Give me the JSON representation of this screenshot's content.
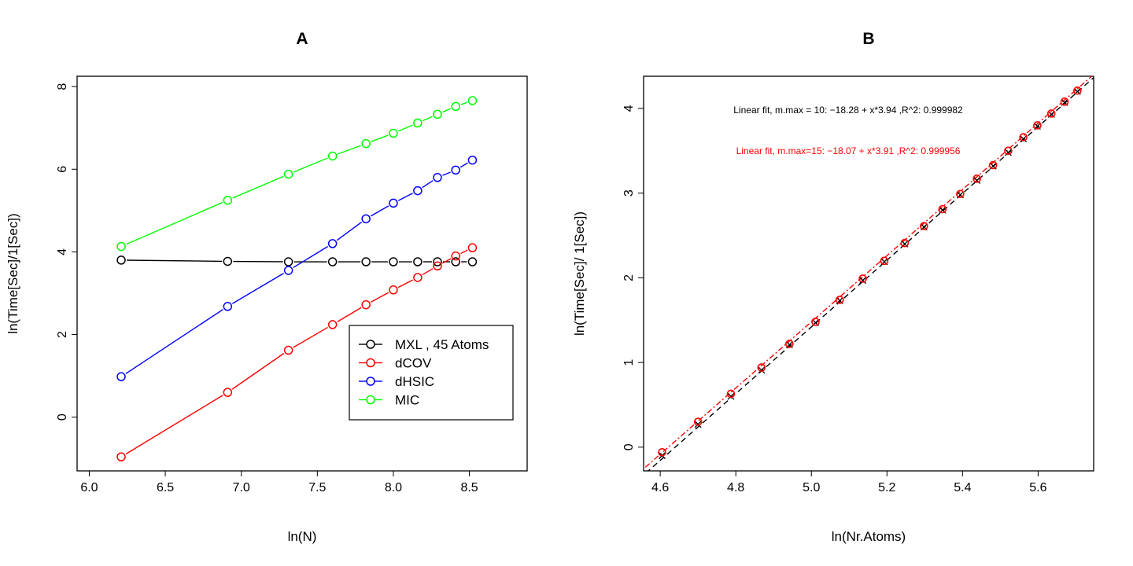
{
  "chart_data": [
    {
      "type": "line",
      "title": "A",
      "xlabel": "ln(N)",
      "ylabel": "ln(Time[Sec]/1[Sec])",
      "xlim": [
        5.92,
        8.88
      ],
      "ylim": [
        -1.3,
        8.25
      ],
      "x_ticks": [
        "6.0",
        "6.5",
        "7.0",
        "7.5",
        "8.0",
        "8.5"
      ],
      "y_ticks": [
        "0",
        "2",
        "4",
        "6",
        "8"
      ],
      "grid": false,
      "legend_position": "bottom-right",
      "series": [
        {
          "name": "MXL , 45 Atoms",
          "color": "#000000",
          "x": [
            6.21,
            6.91,
            7.31,
            7.6,
            7.82,
            8.0,
            8.16,
            8.29,
            8.41,
            8.52
          ],
          "y": [
            3.8,
            3.77,
            3.76,
            3.76,
            3.76,
            3.76,
            3.76,
            3.76,
            3.76,
            3.76
          ]
        },
        {
          "name": "dCOV",
          "color": "#ff0000",
          "x": [
            6.21,
            6.91,
            7.31,
            7.6,
            7.82,
            8.0,
            8.16,
            8.29,
            8.41,
            8.52
          ],
          "y": [
            -0.96,
            0.6,
            1.62,
            2.24,
            2.72,
            3.08,
            3.38,
            3.66,
            3.9,
            4.1
          ]
        },
        {
          "name": "dHSIC",
          "color": "#0000ff",
          "x": [
            6.21,
            6.91,
            7.31,
            7.6,
            7.82,
            8.0,
            8.16,
            8.29,
            8.41,
            8.52
          ],
          "y": [
            0.98,
            2.68,
            3.55,
            4.2,
            4.8,
            5.18,
            5.48,
            5.8,
            5.98,
            6.22
          ]
        },
        {
          "name": "MIC",
          "color": "#00ff00",
          "x": [
            6.21,
            6.91,
            7.31,
            7.6,
            7.82,
            8.0,
            8.16,
            8.29,
            8.41,
            8.52
          ],
          "y": [
            4.13,
            5.25,
            5.88,
            6.32,
            6.62,
            6.87,
            7.12,
            7.33,
            7.52,
            7.66
          ]
        }
      ]
    },
    {
      "type": "scatter",
      "title": "B",
      "xlabel": "ln(Nr.Atoms)",
      "ylabel": "ln(Time[Sec]/ 1[Sec])",
      "xlim": [
        4.556,
        5.747
      ],
      "ylim": [
        -0.28,
        4.38
      ],
      "x_ticks": [
        "4.6",
        "4.8",
        "5.0",
        "5.2",
        "5.4",
        "5.6"
      ],
      "y_ticks": [
        "0",
        "1",
        "2",
        "3",
        "4"
      ],
      "grid": false,
      "annotations": [
        {
          "text": "Linear fit, m.max = 10: −18.28 + x*3.94 ,R^2: 0.999982",
          "color": "#000000"
        },
        {
          "text": "Linear fit, m.max=15: −18.07 + x*3.91 ,R^2: 0.999956",
          "color": "#ff0000"
        }
      ],
      "series": [
        {
          "marker": "x",
          "color": "#000000",
          "x": [
            4.605,
            4.7,
            4.787,
            4.868,
            4.942,
            5.011,
            5.075,
            5.136,
            5.193,
            5.247,
            5.298,
            5.347,
            5.394,
            5.438,
            5.481,
            5.521,
            5.561,
            5.598,
            5.635,
            5.67,
            5.704
          ],
          "y": [
            -0.1,
            0.27,
            0.6,
            0.91,
            1.21,
            1.47,
            1.73,
            1.97,
            2.19,
            2.4,
            2.6,
            2.8,
            2.98,
            3.15,
            3.32,
            3.48,
            3.64,
            3.79,
            3.93,
            4.07,
            4.2
          ]
        },
        {
          "marker": "circle",
          "color": "#ff0000",
          "x": [
            4.605,
            4.7,
            4.787,
            4.868,
            4.942,
            5.011,
            5.075,
            5.136,
            5.193,
            5.247,
            5.298,
            5.347,
            5.394,
            5.438,
            5.481,
            5.521,
            5.561,
            5.598,
            5.635,
            5.67,
            5.704
          ],
          "y": [
            -0.06,
            0.3,
            0.63,
            0.94,
            1.22,
            1.48,
            1.74,
            1.99,
            2.2,
            2.41,
            2.61,
            2.81,
            2.99,
            3.17,
            3.33,
            3.5,
            3.66,
            3.8,
            3.94,
            4.08,
            4.21
          ]
        }
      ],
      "fit_lines": [
        {
          "color": "#000000",
          "style": "dashed",
          "intercept": -18.28,
          "slope": 3.94
        },
        {
          "color": "#ff0000",
          "style": "dotted",
          "intercept": -18.07,
          "slope": 3.91
        }
      ]
    }
  ]
}
